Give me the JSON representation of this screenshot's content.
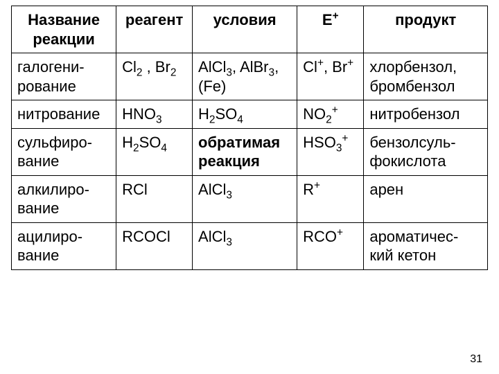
{
  "page_number": "31",
  "table": {
    "headers": {
      "name": "Название реакции",
      "reagent": "реагент",
      "cond": "условия",
      "eplus": "E⁺",
      "product": "продукт"
    },
    "rows": [
      {
        "name": "галогени-рование",
        "reagent": "Cl₂ , Br₂",
        "cond": "AlCl₃, AlBr₃, (Fe)",
        "eplus": "Cl⁺, Br⁺",
        "product": "хлорбензол, бромбензол"
      },
      {
        "name": "нитрование",
        "reagent": "HNO₃",
        "cond": "H₂SO₄",
        "eplus": "NO₂⁺",
        "product": "нитробензол"
      },
      {
        "name": "сульфиро-вание",
        "reagent": "H₂SO₄",
        "cond": "обратимая реакция",
        "cond_bold": true,
        "eplus": "HSO₃⁺",
        "product": "бензолсуль-фокислота"
      },
      {
        "name": "алкилиро-вание",
        "reagent": "RCl",
        "cond": "AlCl₃",
        "eplus": "R⁺",
        "product": "арен"
      },
      {
        "name": "ацилиро-вание",
        "reagent": "RCOCl",
        "cond": "AlCl₃",
        "eplus": "RCO⁺",
        "product": "ароматичес-кий кетон"
      }
    ]
  }
}
